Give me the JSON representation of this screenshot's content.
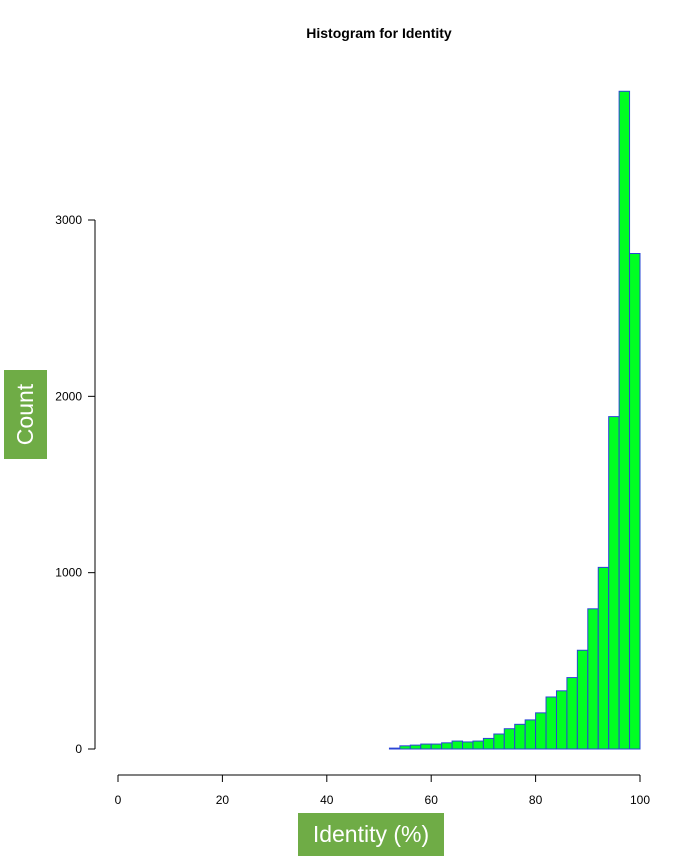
{
  "chart_data": {
    "type": "bar",
    "title": "Histogram for Identity",
    "xlabel": "Identity (%)",
    "ylabel": "Count",
    "xlim": [
      0,
      100
    ],
    "ylim": [
      0,
      3750
    ],
    "x_ticks": [
      0,
      20,
      40,
      60,
      80,
      100
    ],
    "y_ticks": [
      0,
      1000,
      2000,
      3000
    ],
    "bin_width": 2,
    "bins": [
      {
        "start": 52,
        "end": 54,
        "value": 5
      },
      {
        "start": 54,
        "end": 56,
        "value": 18
      },
      {
        "start": 56,
        "end": 58,
        "value": 22
      },
      {
        "start": 58,
        "end": 60,
        "value": 28
      },
      {
        "start": 60,
        "end": 62,
        "value": 28
      },
      {
        "start": 62,
        "end": 64,
        "value": 35
      },
      {
        "start": 64,
        "end": 66,
        "value": 45
      },
      {
        "start": 66,
        "end": 68,
        "value": 40
      },
      {
        "start": 68,
        "end": 70,
        "value": 45
      },
      {
        "start": 70,
        "end": 72,
        "value": 60
      },
      {
        "start": 72,
        "end": 74,
        "value": 85
      },
      {
        "start": 74,
        "end": 76,
        "value": 115
      },
      {
        "start": 76,
        "end": 78,
        "value": 140
      },
      {
        "start": 78,
        "end": 80,
        "value": 165
      },
      {
        "start": 80,
        "end": 82,
        "value": 205
      },
      {
        "start": 82,
        "end": 84,
        "value": 295
      },
      {
        "start": 84,
        "end": 86,
        "value": 330
      },
      {
        "start": 86,
        "end": 88,
        "value": 405
      },
      {
        "start": 88,
        "end": 90,
        "value": 560
      },
      {
        "start": 90,
        "end": 92,
        "value": 795
      },
      {
        "start": 92,
        "end": 94,
        "value": 1030
      },
      {
        "start": 94,
        "end": 96,
        "value": 1885
      },
      {
        "start": 96,
        "end": 98,
        "value": 3730
      },
      {
        "start": 98,
        "end": 100,
        "value": 2810
      }
    ],
    "colors": {
      "fill": "#00ff22",
      "border": "#2a44d6",
      "label_box": "#6fac46"
    },
    "grid": false,
    "legend": "none"
  }
}
